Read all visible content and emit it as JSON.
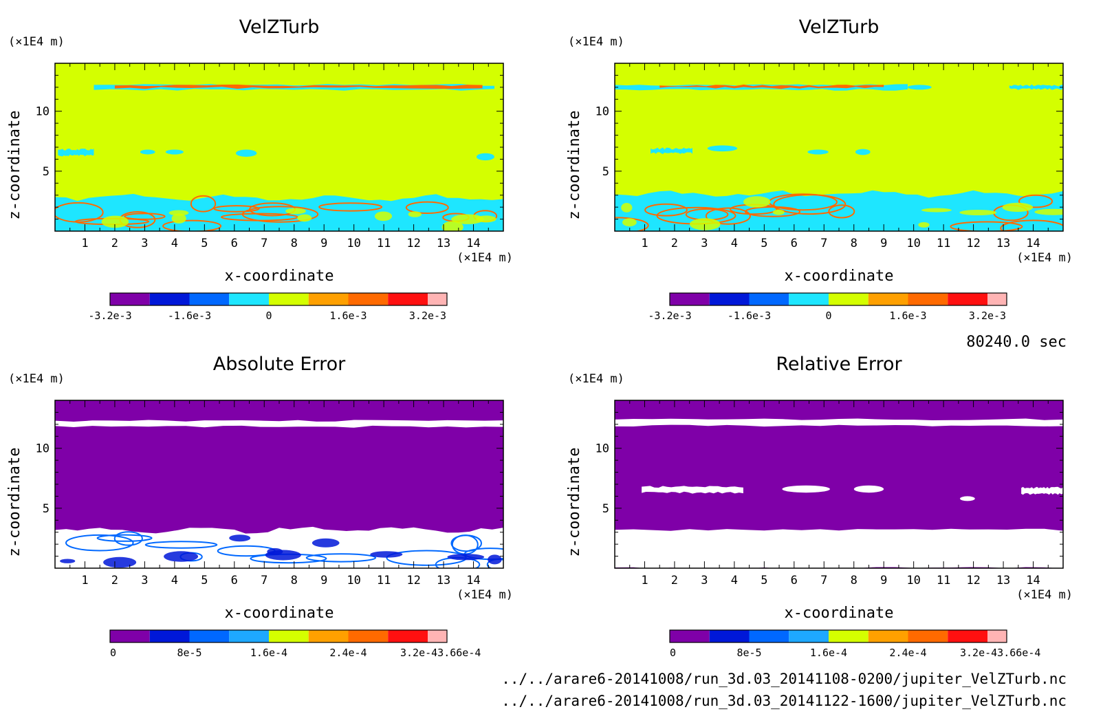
{
  "colors": {
    "purple": "#7f00a8",
    "yellowgreen": "#d4ff00",
    "cyan": "#1ee6ff",
    "white": "#ffffff"
  },
  "time_label": "80240.0 sec",
  "files": [
    "../../arare6-20141008/run_3d.03_20141108-0200/jupiter_VelZTurb.nc",
    "../../arare6-20141008/run_3d.03_20141122-1600/jupiter_VelZTurb.nc"
  ],
  "chart_data": [
    {
      "type": "heatmap",
      "title": "VelZTurb",
      "xlabel": "x-coordinate",
      "ylabel": "z-coordinate",
      "x_unit": "(×1E4 m)",
      "y_unit": "(×1E4 m)",
      "xlim": [
        0,
        15
      ],
      "ylim": [
        0,
        14
      ],
      "x_ticks": [
        "1",
        "2",
        "3",
        "4",
        "5",
        "6",
        "7",
        "8",
        "9",
        "10",
        "11",
        "12",
        "13",
        "14"
      ],
      "y_ticks": [
        "5",
        "10"
      ],
      "background_color": "#d4ff00",
      "colorbar": {
        "colors": [
          "#7f00a8",
          "#0018d8",
          "#0068ff",
          "#1ee6ff",
          "#d4ff00",
          "#ffa000",
          "#ff6a00",
          "#ff1010",
          "#ffb4b4"
        ],
        "tick_labels": [
          "-3.2e-3",
          "-1.6e-3",
          "0",
          "1.6e-3",
          "3.2e-3"
        ]
      },
      "features": [
        {
          "shape": "band",
          "z": [
            11.8,
            12.2
          ],
          "x": [
            1.3,
            14.7
          ],
          "color": "#1ee6ff"
        },
        {
          "shape": "band",
          "z": [
            11.95,
            12.15
          ],
          "x": [
            2.0,
            14.3
          ],
          "color": "#ff6a00"
        },
        {
          "shape": "band",
          "z": [
            6.3,
            6.8
          ],
          "x": [
            0.1,
            1.3
          ],
          "color": "#1ee6ff"
        },
        {
          "shape": "blob",
          "cx": 3.1,
          "cz": 6.6,
          "rx": 0.25,
          "rz": 0.2,
          "color": "#1ee6ff"
        },
        {
          "shape": "blob",
          "cx": 4.0,
          "cz": 6.6,
          "rx": 0.3,
          "rz": 0.2,
          "color": "#1ee6ff"
        },
        {
          "shape": "blob",
          "cx": 6.4,
          "cz": 6.5,
          "rx": 0.35,
          "rz": 0.3,
          "color": "#1ee6ff"
        },
        {
          "shape": "blob",
          "cx": 14.4,
          "cz": 6.2,
          "rx": 0.3,
          "rz": 0.3,
          "color": "#1ee6ff"
        },
        {
          "shape": "turbulent_layer",
          "z": [
            0,
            2.8
          ],
          "x": [
            0,
            15
          ],
          "color": "#1ee6ff",
          "arcs": "#ff6a00"
        }
      ]
    },
    {
      "type": "heatmap",
      "title": "VelZTurb",
      "xlabel": "x-coordinate",
      "ylabel": "z-coordinate",
      "x_unit": "(×1E4 m)",
      "y_unit": "(×1E4 m)",
      "xlim": [
        0,
        15
      ],
      "ylim": [
        0,
        14
      ],
      "x_ticks": [
        "1",
        "2",
        "3",
        "4",
        "5",
        "6",
        "7",
        "8",
        "9",
        "10",
        "11",
        "12",
        "13",
        "14"
      ],
      "y_ticks": [
        "5",
        "10"
      ],
      "background_color": "#d4ff00",
      "colorbar": {
        "colors": [
          "#7f00a8",
          "#0018d8",
          "#0068ff",
          "#1ee6ff",
          "#d4ff00",
          "#ffa000",
          "#ff6a00",
          "#ff1010",
          "#ffb4b4"
        ],
        "tick_labels": [
          "-3.2e-3",
          "-1.6e-3",
          "0",
          "1.6e-3",
          "3.2e-3"
        ]
      },
      "features": [
        {
          "shape": "band",
          "z": [
            11.8,
            12.2
          ],
          "x": [
            0.0,
            9.8
          ],
          "color": "#1ee6ff"
        },
        {
          "shape": "band",
          "z": [
            11.95,
            12.15
          ],
          "x": [
            1.5,
            9.0
          ],
          "color": "#ff6a00"
        },
        {
          "shape": "blob",
          "cx": 10.2,
          "cz": 12.0,
          "rx": 0.4,
          "rz": 0.2,
          "color": "#1ee6ff"
        },
        {
          "shape": "band",
          "z": [
            11.85,
            12.15
          ],
          "x": [
            13.2,
            15.0
          ],
          "color": "#1ee6ff"
        },
        {
          "shape": "band",
          "z": [
            6.5,
            6.9
          ],
          "x": [
            1.2,
            2.6
          ],
          "color": "#1ee6ff"
        },
        {
          "shape": "blob",
          "cx": 3.6,
          "cz": 6.9,
          "rx": 0.5,
          "rz": 0.25,
          "color": "#1ee6ff"
        },
        {
          "shape": "blob",
          "cx": 6.8,
          "cz": 6.6,
          "rx": 0.35,
          "rz": 0.2,
          "color": "#1ee6ff"
        },
        {
          "shape": "blob",
          "cx": 8.3,
          "cz": 6.6,
          "rx": 0.25,
          "rz": 0.25,
          "color": "#1ee6ff"
        },
        {
          "shape": "turbulent_layer",
          "z": [
            0,
            3.1
          ],
          "x": [
            0,
            15
          ],
          "color": "#1ee6ff",
          "arcs": "#ff6a00"
        }
      ]
    },
    {
      "type": "heatmap",
      "title": "Absolute Error",
      "xlabel": "x-coordinate",
      "ylabel": "z-coordinate",
      "x_unit": "(×1E4 m)",
      "y_unit": "(×1E4 m)",
      "xlim": [
        0,
        15
      ],
      "ylim": [
        0,
        14
      ],
      "x_ticks": [
        "1",
        "2",
        "3",
        "4",
        "5",
        "6",
        "7",
        "8",
        "9",
        "10",
        "11",
        "12",
        "13",
        "14"
      ],
      "y_ticks": [
        "5",
        "10"
      ],
      "background_color": "#7f00a8",
      "colorbar": {
        "colors": [
          "#7f00a8",
          "#0018d8",
          "#0068ff",
          "#1ea8ff",
          "#d4ff00",
          "#ffa000",
          "#ff6a00",
          "#ff1010",
          "#ffb4b4"
        ],
        "tick_labels": [
          "0",
          "8e-5",
          "1.6e-4",
          "2.4e-4",
          "3.2e-43.66e-4"
        ]
      },
      "features": [
        {
          "shape": "band",
          "z": [
            11.8,
            12.3
          ],
          "x": [
            0,
            15
          ],
          "color": "#ffffff"
        },
        {
          "shape": "turbulent_layer",
          "z": [
            0,
            3.2
          ],
          "x": [
            0,
            15
          ],
          "color": "#ffffff",
          "arcs": "#0068ff"
        }
      ]
    },
    {
      "type": "heatmap",
      "title": "Relative Error",
      "xlabel": "x-coordinate",
      "ylabel": "z-coordinate",
      "x_unit": "(×1E4 m)",
      "y_unit": "(×1E4 m)",
      "xlim": [
        0,
        15
      ],
      "ylim": [
        0,
        14
      ],
      "x_ticks": [
        "1",
        "2",
        "3",
        "4",
        "5",
        "6",
        "7",
        "8",
        "9",
        "10",
        "11",
        "12",
        "13",
        "14"
      ],
      "y_ticks": [
        "5",
        "10"
      ],
      "background_color": "#7f00a8",
      "colorbar": {
        "colors": [
          "#7f00a8",
          "#0018d8",
          "#0068ff",
          "#1ea8ff",
          "#d4ff00",
          "#ffa000",
          "#ff6a00",
          "#ff1010",
          "#ffb4b4"
        ],
        "tick_labels": [
          "0",
          "8e-5",
          "1.6e-4",
          "2.4e-4",
          "3.2e-43.66e-4"
        ]
      },
      "features": [
        {
          "shape": "band",
          "z": [
            11.9,
            12.4
          ],
          "x": [
            0,
            15
          ],
          "color": "#ffffff"
        },
        {
          "shape": "band",
          "z": [
            6.3,
            6.8
          ],
          "x": [
            0.9,
            4.3
          ],
          "color": "#ffffff"
        },
        {
          "shape": "blob",
          "cx": 6.4,
          "cz": 6.6,
          "rx": 0.8,
          "rz": 0.3,
          "color": "#ffffff"
        },
        {
          "shape": "blob",
          "cx": 8.5,
          "cz": 6.6,
          "rx": 0.5,
          "rz": 0.3,
          "color": "#ffffff"
        },
        {
          "shape": "blob",
          "cx": 11.8,
          "cz": 5.8,
          "rx": 0.25,
          "rz": 0.2,
          "color": "#ffffff"
        },
        {
          "shape": "band",
          "z": [
            6.2,
            6.7
          ],
          "x": [
            13.6,
            15
          ],
          "color": "#ffffff"
        },
        {
          "shape": "band",
          "z": [
            0,
            3.2
          ],
          "x": [
            0,
            15
          ],
          "color": "#ffffff"
        }
      ]
    }
  ]
}
